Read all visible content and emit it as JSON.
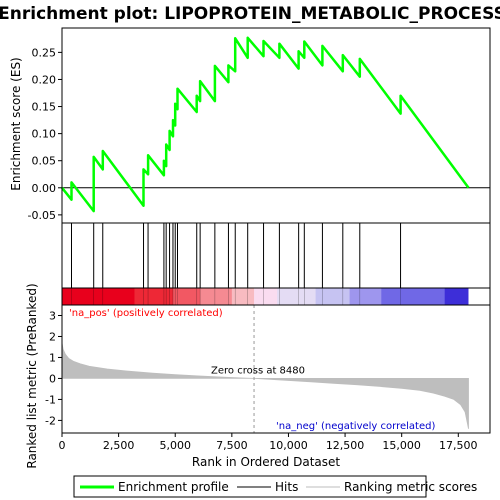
{
  "chart_data": {
    "type": "line",
    "title": "Enrichment plot: LIPOPROTEIN_METABOLIC_PROCESS",
    "colors": {
      "profile": "#00ff00",
      "hits": "#000000",
      "metric": "#bebebe",
      "pos_label": "#ff0000",
      "neg_label": "#0000cc"
    },
    "top_panel": {
      "ylabel": "Enrichment score (ES)",
      "ylim": [
        -0.065,
        0.295
      ],
      "yticks": [
        -0.05,
        0.0,
        0.05,
        0.1,
        0.15,
        0.2,
        0.25
      ],
      "ytick_labels": [
        "-0.05",
        "0.00",
        "0.05",
        "0.10",
        "0.15",
        "0.20",
        "0.25"
      ],
      "series": [
        {
          "name": "Enrichment profile",
          "x": [
            0,
            420,
            420,
            1400,
            1400,
            1800,
            1800,
            3600,
            3600,
            3800,
            3800,
            4500,
            4500,
            4600,
            4600,
            4750,
            4750,
            4900,
            4900,
            5000,
            5000,
            5100,
            5100,
            5950,
            5950,
            6100,
            6100,
            6750,
            6750,
            7350,
            7350,
            7650,
            7650,
            8200,
            8200,
            8900,
            8900,
            9600,
            9600,
            10450,
            10450,
            10700,
            10700,
            11500,
            11500,
            12400,
            12400,
            13150,
            13150,
            14950,
            14950,
            17950
          ],
          "y": [
            0.0,
            -0.022,
            0.01,
            -0.043,
            0.057,
            0.034,
            0.068,
            -0.033,
            0.034,
            0.025,
            0.06,
            0.023,
            0.05,
            0.04,
            0.08,
            0.07,
            0.105,
            0.095,
            0.125,
            0.115,
            0.155,
            0.145,
            0.183,
            0.14,
            0.17,
            0.16,
            0.197,
            0.16,
            0.225,
            0.195,
            0.226,
            0.215,
            0.276,
            0.24,
            0.277,
            0.243,
            0.271,
            0.24,
            0.266,
            0.22,
            0.252,
            0.24,
            0.27,
            0.226,
            0.262,
            0.215,
            0.245,
            0.205,
            0.238,
            0.137,
            0.17,
            0.0
          ]
        }
      ]
    },
    "hits_panel": {
      "hits": [
        420,
        1400,
        1800,
        3600,
        3800,
        4500,
        4600,
        4750,
        4900,
        5000,
        5100,
        5950,
        6100,
        6750,
        7350,
        7650,
        8200,
        8900,
        9600,
        10450,
        10700,
        11500,
        12400,
        13150,
        14950
      ]
    },
    "color_bar": {
      "colors": [
        "#e8001c",
        "#ee2836",
        "#f25863",
        "#f58a92",
        "#f8bbc1",
        "#fadcf0",
        "#e4dcf4",
        "#c6c3f2",
        "#9e96ee",
        "#7068e6",
        "#3d2ed8",
        "#1e0ab8"
      ],
      "stops": [
        0,
        3200,
        4900,
        6100,
        7500,
        8480,
        9500,
        11200,
        12700,
        14100,
        16900,
        17950
      ]
    },
    "bottom_panel": {
      "ylabel": "Ranked list metric (PreRanked)",
      "ylim": [
        -2.6,
        3.5
      ],
      "yticks": [
        -2,
        -1,
        0,
        1,
        2,
        3
      ],
      "ytick_labels": [
        "-2",
        "-1",
        "0",
        "1",
        "2",
        "3"
      ],
      "metric_curve": {
        "x": [
          0,
          50,
          150,
          300,
          500,
          800,
          1200,
          2000,
          3000,
          4000,
          5000,
          6000,
          7000,
          8000,
          8480,
          9000,
          10000,
          11000,
          12000,
          13000,
          14000,
          15000,
          15800,
          16400,
          16900,
          17300,
          17600,
          17800,
          17950
        ],
        "y": [
          1.7,
          1.4,
          1.15,
          0.95,
          0.82,
          0.7,
          0.58,
          0.45,
          0.34,
          0.25,
          0.18,
          0.12,
          0.07,
          0.02,
          0.0,
          -0.03,
          -0.1,
          -0.16,
          -0.23,
          -0.3,
          -0.38,
          -0.47,
          -0.57,
          -0.7,
          -0.85,
          -1.0,
          -1.25,
          -1.6,
          -2.4
        ]
      },
      "pos_label": "'na_pos' (positively correlated)",
      "neg_label": "'na_neg' (negatively correlated)",
      "zero_cross_label": "Zero cross at 8480",
      "zero_cross": 8480
    },
    "x_axis": {
      "label": "Rank in Ordered Dataset",
      "xlim": [
        0,
        18900
      ],
      "ticks": [
        0,
        2500,
        5000,
        7500,
        10000,
        12500,
        15000,
        17500
      ],
      "tick_labels": [
        "0",
        "2,500",
        "5,000",
        "7,500",
        "10,000",
        "12,500",
        "15,000",
        "17,500"
      ]
    },
    "legend": {
      "items": [
        {
          "label": "Enrichment profile",
          "color": "#00ff00",
          "kind": "thick-line"
        },
        {
          "label": "Hits",
          "color": "#000000",
          "kind": "line"
        },
        {
          "label": "Ranking metric scores",
          "color": "#bebebe",
          "kind": "line"
        }
      ]
    }
  }
}
